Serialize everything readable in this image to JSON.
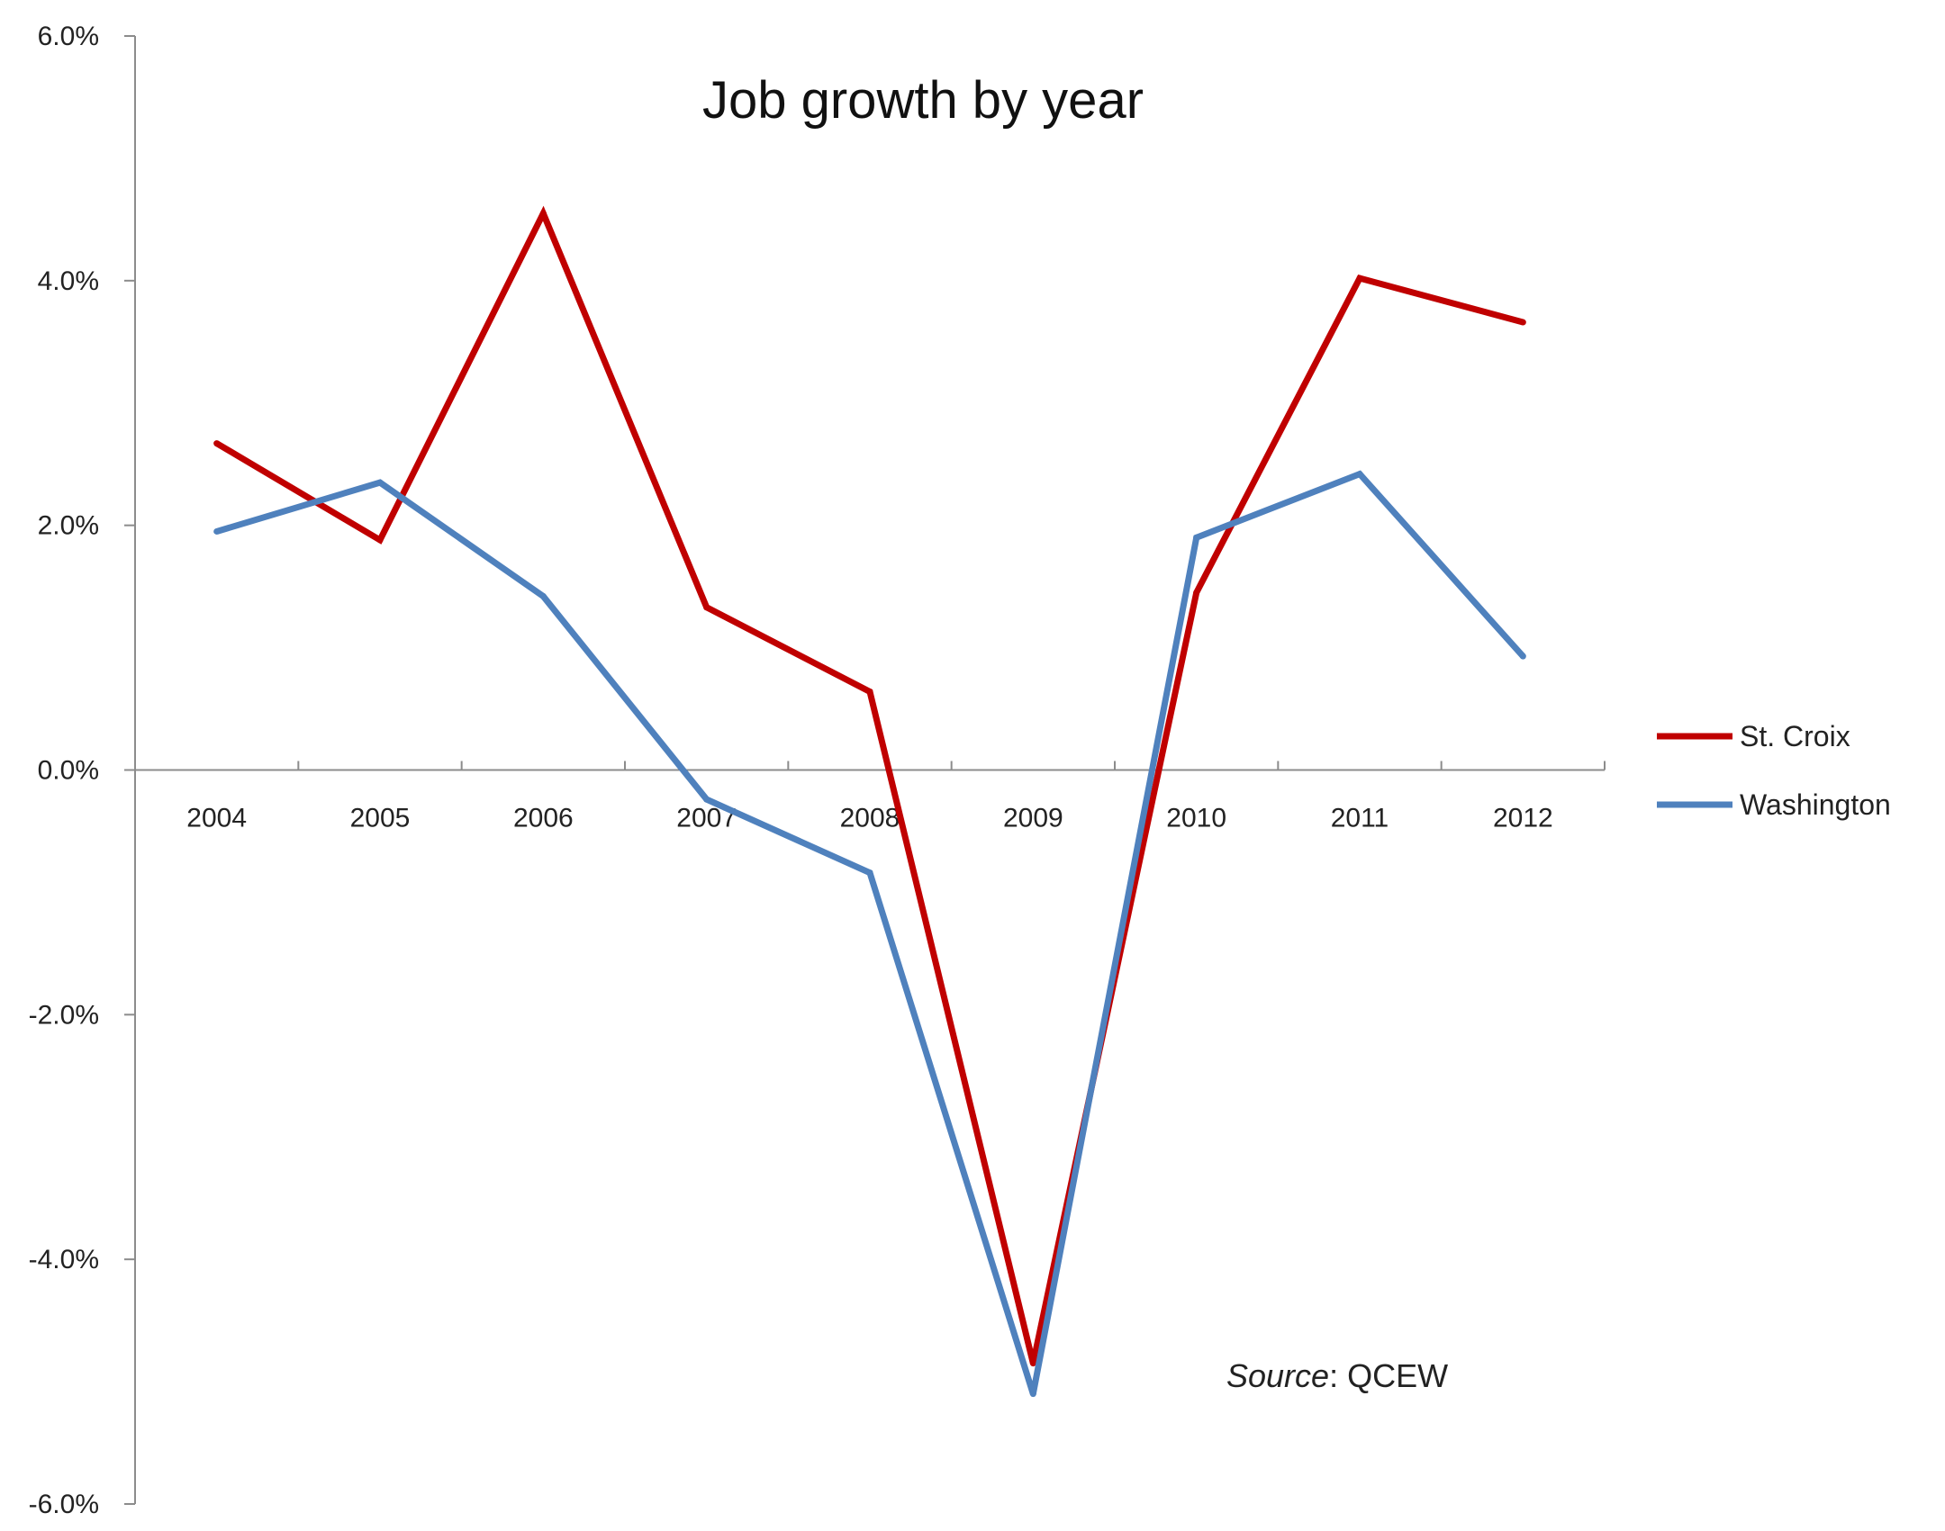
{
  "chart_data": {
    "type": "line",
    "title": "Job growth by year",
    "categories": [
      "2004",
      "2005",
      "2006",
      "2007",
      "2008",
      "2009",
      "2010",
      "2011",
      "2012"
    ],
    "ylim": [
      -6.0,
      6.0
    ],
    "yticks": [
      -6.0,
      -4.0,
      -2.0,
      0.0,
      2.0,
      4.0,
      6.0
    ],
    "ytick_labels": [
      "-6.0%",
      "-4.0%",
      "-2.0%",
      "0.0%",
      "2.0%",
      "4.0%",
      "6.0%"
    ],
    "grid": false,
    "legend_position": "right",
    "series": [
      {
        "name": "St. Croix",
        "color": "#c00000",
        "values": [
          2.67,
          1.88,
          4.55,
          1.33,
          0.64,
          -4.85,
          1.45,
          4.02,
          3.66
        ]
      },
      {
        "name": "Washington",
        "color": "#4f81bd",
        "values": [
          1.95,
          2.35,
          1.42,
          -0.24,
          -0.84,
          -5.1,
          1.9,
          2.42,
          0.93
        ]
      }
    ],
    "annotation": {
      "source_label": "Source",
      "source_value": ": QCEW"
    }
  }
}
